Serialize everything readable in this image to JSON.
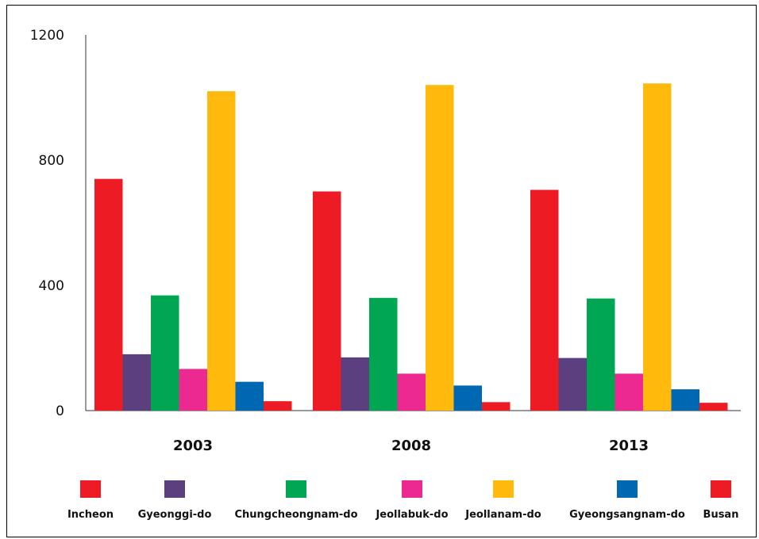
{
  "chart_data": {
    "type": "bar",
    "categories": [
      "2003",
      "2008",
      "2013"
    ],
    "series": [
      {
        "name": "Incheon",
        "color": "#ED1C24",
        "values": [
          740,
          700,
          705
        ]
      },
      {
        "name": "Gyeonggi-do",
        "color": "#5B3F7E",
        "values": [
          180,
          170,
          168
        ]
      },
      {
        "name": "Chungcheongnam-do",
        "color": "#00A651",
        "values": [
          368,
          360,
          358
        ]
      },
      {
        "name": "Jeollabuk-do",
        "color": "#EC2891",
        "values": [
          133,
          118,
          118
        ]
      },
      {
        "name": "Jeollanam-do",
        "color": "#FFBA0D",
        "values": [
          1020,
          1040,
          1045
        ]
      },
      {
        "name": "Gyeongsangnam-do",
        "color": "#0067B3",
        "values": [
          92,
          80,
          68
        ]
      },
      {
        "name": "Busan",
        "color": "#ED1C24",
        "values": [
          30,
          27,
          25
        ]
      }
    ],
    "y_ticks": [
      "0",
      "400",
      "800",
      "1200"
    ],
    "ylim": [
      0,
      1200
    ],
    "grid": false,
    "legend_position": "bottom"
  }
}
